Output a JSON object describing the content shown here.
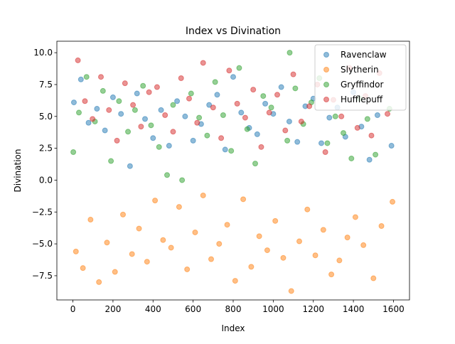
{
  "chart_data": {
    "type": "scatter",
    "title": "Index vs Divination",
    "xlabel": "Index",
    "ylabel": "Divination",
    "xlim": [
      -80,
      1680
    ],
    "ylim": [
      -9.4,
      10.9
    ],
    "xticks": [
      0,
      200,
      400,
      600,
      800,
      1000,
      1200,
      1400,
      1600
    ],
    "yticks": [
      {
        "value": -7.5,
        "label": "−7.5"
      },
      {
        "value": -5,
        "label": "−5.0"
      },
      {
        "value": -2.5,
        "label": "−2.5"
      },
      {
        "value": 0,
        "label": "0.0"
      },
      {
        "value": 2.5,
        "label": "2.5"
      },
      {
        "value": 5,
        "label": "5.0"
      },
      {
        "value": 7.5,
        "label": "7.5"
      },
      {
        "value": 10,
        "label": "10.0"
      }
    ],
    "legend": "upper right",
    "series": [
      {
        "name": "Ravenclaw",
        "color": "#1f77b4",
        "x": [
          5,
          40,
          78,
          120,
          160,
          200,
          240,
          285,
          320,
          360,
          400,
          440,
          480,
          520,
          560,
          600,
          640,
          680,
          720,
          760,
          800,
          840,
          880,
          920,
          960,
          1000,
          1040,
          1080,
          1120,
          1160,
          1200,
          1240,
          1280,
          1320,
          1360,
          1400,
          1440,
          1480,
          1520,
          1590
        ],
        "values": [
          6.1,
          7.9,
          4.5,
          5.6,
          3.9,
          6.5,
          5.2,
          1.1,
          6.8,
          4.8,
          3.3,
          5.5,
          2.7,
          6.2,
          5.0,
          3.1,
          4.4,
          5.9,
          6.7,
          2.4,
          8.1,
          5.3,
          4.1,
          3.6,
          6.0,
          5.2,
          7.3,
          4.6,
          3.0,
          5.8,
          6.4,
          2.9,
          4.9,
          5.7,
          3.4,
          6.9,
          4.2,
          1.6,
          5.1,
          2.7
        ]
      },
      {
        "name": "Slytherin",
        "color": "#ff7f0e",
        "x": [
          15,
          50,
          88,
          130,
          170,
          210,
          250,
          295,
          330,
          370,
          410,
          450,
          490,
          530,
          570,
          610,
          650,
          690,
          730,
          770,
          810,
          850,
          890,
          930,
          970,
          1010,
          1050,
          1090,
          1130,
          1170,
          1210,
          1250,
          1290,
          1330,
          1370,
          1410,
          1450,
          1500,
          1540,
          1595
        ],
        "values": [
          -5.6,
          -6.9,
          -3.1,
          -8.0,
          -4.9,
          -7.2,
          -2.7,
          -5.8,
          -3.8,
          -6.4,
          -1.6,
          -4.7,
          -5.3,
          -2.1,
          -7.0,
          -4.1,
          -1.2,
          -6.2,
          -5.0,
          -3.5,
          -7.9,
          -1.5,
          -6.8,
          -4.4,
          -5.5,
          -3.2,
          -6.1,
          -8.7,
          -4.8,
          -2.3,
          -5.9,
          -3.9,
          -7.4,
          -6.3,
          -4.5,
          -2.9,
          -5.1,
          -7.7,
          -3.6,
          -1.7
        ]
      },
      {
        "name": "Gryffindor",
        "color": "#2ca02c",
        "x": [
          2,
          30,
          68,
          110,
          150,
          190,
          230,
          275,
          310,
          350,
          390,
          430,
          470,
          500,
          545,
          590,
          630,
          670,
          710,
          750,
          790,
          830,
          870,
          910,
          950,
          990,
          1082,
          1070,
          1110,
          1150,
          1190,
          1230,
          1270,
          1310,
          1350,
          1390,
          1430,
          1470,
          1510,
          1580
        ],
        "values": [
          2.2,
          5.3,
          8.1,
          4.6,
          7.0,
          1.5,
          6.2,
          3.8,
          5.5,
          7.4,
          4.3,
          2.6,
          0.4,
          5.9,
          0.0,
          6.8,
          4.9,
          3.5,
          7.7,
          5.1,
          2.3,
          8.8,
          4.0,
          1.3,
          6.6,
          5.7,
          10.0,
          3.1,
          7.2,
          4.4,
          6.1,
          8.0,
          2.9,
          5.0,
          3.7,
          1.7,
          6.4,
          4.8,
          2.0,
          5.6
        ]
      },
      {
        "name": "Hufflepuff",
        "color": "#d62728",
        "x": [
          25,
          60,
          98,
          140,
          180,
          220,
          260,
          300,
          340,
          380,
          420,
          460,
          500,
          540,
          580,
          620,
          650,
          700,
          740,
          780,
          820,
          860,
          900,
          940,
          980,
          1020,
          1060,
          1100,
          1140,
          1180,
          1220,
          1260,
          1300,
          1340,
          1380,
          1420,
          1460,
          1490,
          1530,
          1570
        ],
        "values": [
          9.4,
          6.2,
          4.8,
          8.1,
          5.5,
          3.1,
          7.6,
          5.9,
          4.2,
          6.9,
          7.3,
          5.1,
          3.8,
          8.0,
          6.4,
          4.5,
          9.2,
          5.7,
          3.3,
          8.6,
          6.0,
          4.9,
          7.1,
          2.6,
          5.3,
          6.7,
          3.9,
          8.3,
          4.6,
          5.8,
          7.5,
          2.2,
          6.3,
          5.0,
          8.8,
          4.1,
          6.6,
          3.5,
          8.4,
          5.2
        ]
      }
    ]
  }
}
